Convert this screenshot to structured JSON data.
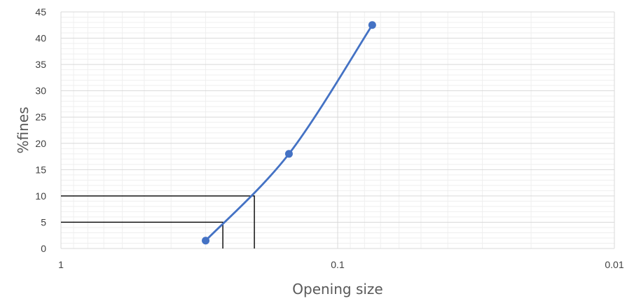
{
  "chart_data": {
    "type": "scatter",
    "title": "",
    "xlabel": "Opening size",
    "ylabel": "%fines",
    "x_scale": "log",
    "x_reversed": true,
    "xlim": [
      1,
      0.01
    ],
    "ylim": [
      0,
      45
    ],
    "x_ticks": [
      1,
      0.1,
      0.01
    ],
    "x_tick_labels": [
      "1",
      "0.1",
      "0.01"
    ],
    "y_ticks": [
      0,
      5,
      10,
      15,
      20,
      25,
      30,
      35,
      40,
      45
    ],
    "y_tick_labels": [
      "0",
      "5",
      "10",
      "15",
      "20",
      "25",
      "30",
      "35",
      "40",
      "45"
    ],
    "grid": true,
    "legend": "none",
    "series": [
      {
        "color": "#4472C4",
        "points": [
          {
            "x": 0.3,
            "y": 1.5
          },
          {
            "x": 0.15,
            "y": 18
          },
          {
            "x": 0.075,
            "y": 42.5
          }
        ]
      }
    ],
    "reference_lines": [
      {
        "y": 10,
        "x": 0.2
      },
      {
        "y": 5,
        "x": 0.26
      }
    ]
  }
}
